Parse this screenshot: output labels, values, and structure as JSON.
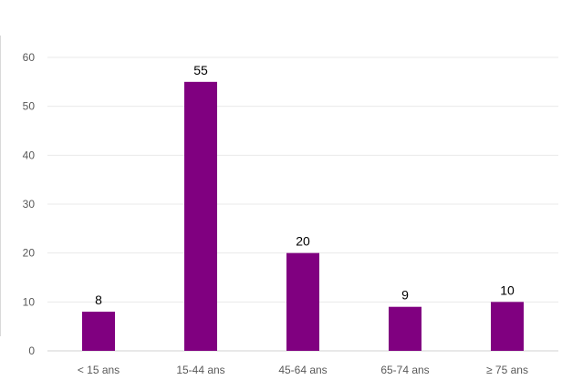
{
  "chart_data": {
    "type": "bar",
    "title": "",
    "xlabel": "",
    "ylabel": "",
    "categories": [
      "< 15 ans",
      "15-44 ans",
      "45-64 ans",
      "65-74 ans",
      "≥ 75 ans"
    ],
    "values": [
      8,
      55,
      20,
      9,
      10
    ],
    "data_labels": [
      "8",
      "55",
      "20",
      "9",
      "10"
    ],
    "ylim": [
      0,
      60
    ],
    "yticks": [
      0,
      10,
      20,
      30,
      40,
      50,
      60
    ],
    "grid": true,
    "legend": "none",
    "bar_color": "#800080"
  }
}
